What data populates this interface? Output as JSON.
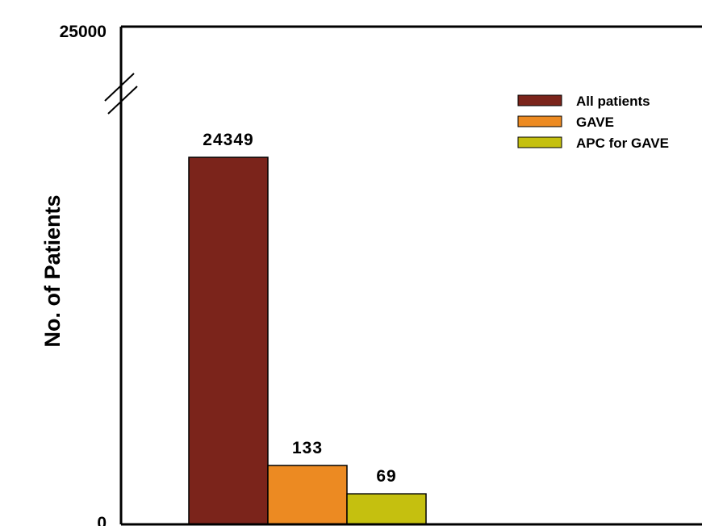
{
  "chart_data": {
    "type": "bar",
    "title": "",
    "xlabel": "",
    "ylabel": "No. of Patients",
    "ylim": [
      0,
      25000
    ],
    "y_ticks": [
      "0",
      "25000"
    ],
    "axis_break": true,
    "grid": false,
    "legend_position": "top-right",
    "series": [
      {
        "name": "All patients",
        "value": 24349,
        "label": "24349",
        "color": "#7b241b"
      },
      {
        "name": "GAVE",
        "value": 133,
        "label": "133",
        "color": "#ec8a22"
      },
      {
        "name": "APC for GAVE",
        "value": 69,
        "label": "69",
        "color": "#c5c00f"
      }
    ]
  }
}
